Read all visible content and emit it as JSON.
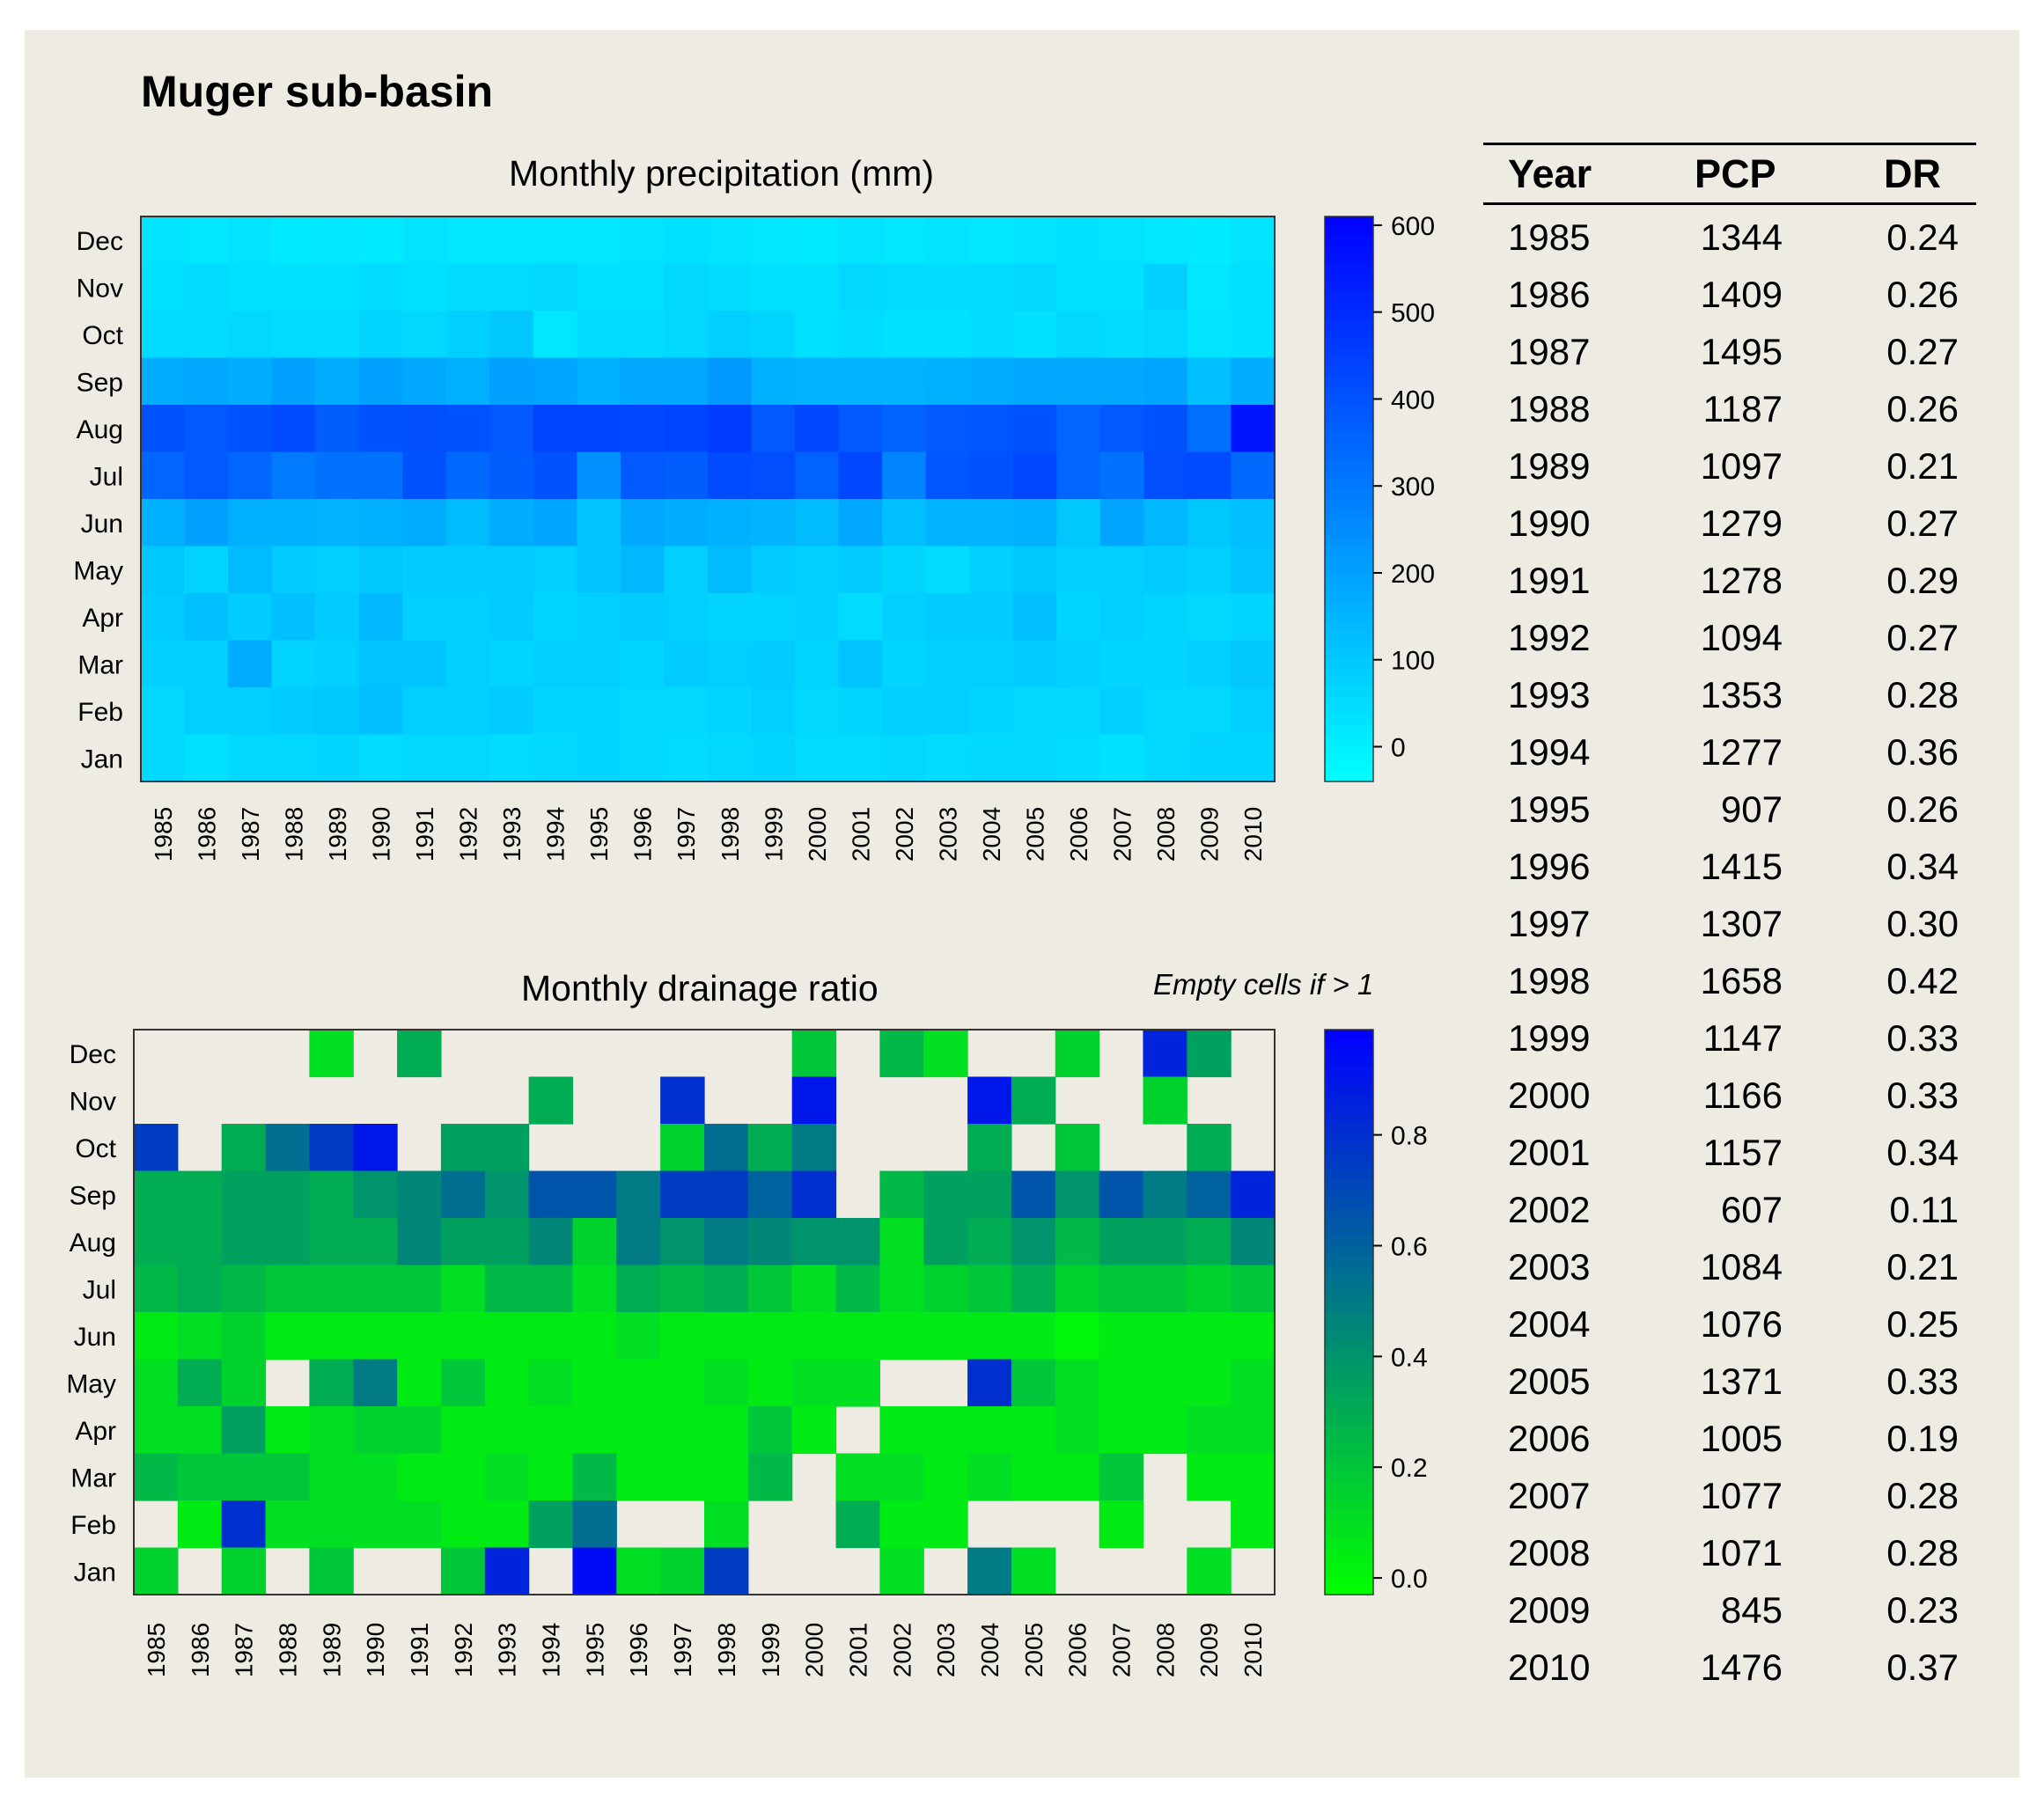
{
  "title": "Muger sub-basin",
  "note": "Empty cells if > 1",
  "colors": {
    "background": "#eeece2",
    "precip_low": "#00ffff",
    "precip_high": "#0000ff",
    "dr_low": "#00ff00",
    "dr_high": "#0000ff"
  },
  "chart_data": [
    {
      "type": "heatmap",
      "title": "Monthly precipitation (mm)",
      "xlabel": "",
      "ylabel": "",
      "x": [
        "1985",
        "1986",
        "1987",
        "1988",
        "1989",
        "1990",
        "1991",
        "1992",
        "1993",
        "1994",
        "1995",
        "1996",
        "1997",
        "1998",
        "1999",
        "2000",
        "2001",
        "2002",
        "2003",
        "2004",
        "2005",
        "2006",
        "2007",
        "2008",
        "2009",
        "2010"
      ],
      "y": [
        "Dec",
        "Nov",
        "Oct",
        "Sep",
        "Aug",
        "Jul",
        "Jun",
        "May",
        "Apr",
        "Mar",
        "Feb",
        "Jan"
      ],
      "colorbar": {
        "min": -40,
        "max": 610,
        "ticks": [
          0,
          100,
          200,
          300,
          400,
          500,
          600
        ],
        "low_color": "#00ffff",
        "high_color": "#0000ff"
      },
      "values": [
        [
          30,
          20,
          30,
          10,
          20,
          10,
          30,
          20,
          20,
          20,
          20,
          30,
          40,
          30,
          20,
          10,
          30,
          20,
          30,
          20,
          30,
          40,
          30,
          20,
          10,
          30
        ],
        [
          40,
          50,
          40,
          40,
          40,
          50,
          40,
          50,
          50,
          60,
          40,
          40,
          60,
          50,
          40,
          40,
          60,
          50,
          50,
          50,
          60,
          40,
          40,
          80,
          20,
          40
        ],
        [
          50,
          50,
          60,
          50,
          50,
          70,
          60,
          80,
          100,
          20,
          50,
          50,
          60,
          80,
          70,
          40,
          50,
          40,
          40,
          50,
          40,
          60,
          50,
          60,
          30,
          40
        ],
        [
          170,
          180,
          170,
          200,
          170,
          200,
          180,
          160,
          200,
          190,
          160,
          180,
          180,
          220,
          160,
          150,
          150,
          150,
          160,
          170,
          180,
          180,
          180,
          190,
          120,
          170
        ],
        [
          400,
          380,
          400,
          420,
          370,
          400,
          410,
          400,
          380,
          440,
          440,
          430,
          440,
          460,
          380,
          430,
          380,
          360,
          380,
          390,
          400,
          350,
          380,
          400,
          330,
          560
        ],
        [
          350,
          380,
          350,
          300,
          320,
          320,
          400,
          340,
          370,
          400,
          240,
          380,
          370,
          420,
          410,
          360,
          430,
          270,
          390,
          400,
          430,
          350,
          320,
          410,
          420,
          340
        ],
        [
          160,
          200,
          160,
          160,
          150,
          160,
          170,
          130,
          170,
          190,
          110,
          180,
          170,
          160,
          150,
          130,
          180,
          120,
          150,
          150,
          160,
          100,
          190,
          140,
          100,
          120
        ],
        [
          100,
          70,
          130,
          90,
          80,
          100,
          90,
          90,
          90,
          80,
          110,
          140,
          80,
          130,
          90,
          80,
          90,
          70,
          50,
          80,
          100,
          80,
          80,
          90,
          80,
          110
        ],
        [
          90,
          120,
          90,
          120,
          90,
          140,
          80,
          80,
          90,
          70,
          80,
          90,
          80,
          70,
          70,
          80,
          50,
          80,
          90,
          90,
          120,
          70,
          80,
          70,
          60,
          70
        ],
        [
          80,
          80,
          170,
          70,
          80,
          110,
          110,
          80,
          70,
          80,
          80,
          70,
          90,
          80,
          90,
          70,
          110,
          70,
          80,
          80,
          90,
          80,
          70,
          70,
          80,
          100
        ],
        [
          60,
          80,
          80,
          90,
          100,
          120,
          80,
          80,
          90,
          70,
          70,
          60,
          60,
          70,
          80,
          60,
          70,
          80,
          80,
          70,
          60,
          60,
          80,
          60,
          60,
          80
        ],
        [
          60,
          40,
          60,
          60,
          70,
          50,
          60,
          60,
          50,
          60,
          70,
          60,
          50,
          60,
          70,
          50,
          50,
          60,
          50,
          60,
          60,
          50,
          40,
          60,
          70,
          70
        ]
      ]
    },
    {
      "type": "heatmap",
      "title": "Monthly drainage ratio",
      "xlabel": "",
      "ylabel": "",
      "x": [
        "1985",
        "1986",
        "1987",
        "1988",
        "1989",
        "1990",
        "1991",
        "1992",
        "1993",
        "1994",
        "1995",
        "1996",
        "1997",
        "1998",
        "1999",
        "2000",
        "2001",
        "2002",
        "2003",
        "2004",
        "2005",
        "2006",
        "2007",
        "2008",
        "2009",
        "2010"
      ],
      "y": [
        "Dec",
        "Nov",
        "Oct",
        "Sep",
        "Aug",
        "Jul",
        "Jun",
        "May",
        "Apr",
        "Mar",
        "Feb",
        "Jan"
      ],
      "colorbar": {
        "min": -0.03,
        "max": 0.99,
        "ticks": [
          0.0,
          0.2,
          0.4,
          0.6,
          0.8
        ],
        "tick_labels": [
          "0.0",
          "0.2",
          "0.4",
          "0.6",
          "0.8"
        ],
        "low_color": "#00ff00",
        "high_color": "#0000ff"
      },
      "empty_rule": "Empty cells if > 1",
      "values": [
        [
          null,
          null,
          null,
          null,
          0.1,
          null,
          0.3,
          null,
          null,
          null,
          null,
          null,
          null,
          null,
          null,
          0.2,
          null,
          0.25,
          0.1,
          null,
          null,
          0.15,
          null,
          0.85,
          0.35,
          null
        ],
        [
          null,
          null,
          null,
          null,
          null,
          null,
          null,
          null,
          null,
          0.3,
          null,
          null,
          0.8,
          null,
          null,
          0.9,
          null,
          null,
          null,
          0.9,
          0.3,
          null,
          null,
          0.15,
          null,
          null
        ],
        [
          0.75,
          null,
          0.3,
          0.55,
          0.75,
          0.9,
          null,
          0.35,
          0.35,
          null,
          null,
          null,
          0.15,
          0.55,
          0.3,
          0.5,
          null,
          null,
          null,
          0.3,
          null,
          0.2,
          null,
          null,
          0.3,
          null
        ],
        [
          0.3,
          0.3,
          0.35,
          0.35,
          0.3,
          0.4,
          0.45,
          0.55,
          0.4,
          0.65,
          0.65,
          0.5,
          0.75,
          0.75,
          0.6,
          0.8,
          null,
          0.25,
          0.35,
          0.35,
          0.65,
          0.4,
          0.65,
          0.5,
          0.6,
          0.85
        ],
        [
          0.3,
          0.3,
          0.35,
          0.35,
          0.3,
          0.3,
          0.45,
          0.35,
          0.35,
          0.45,
          0.15,
          0.5,
          0.4,
          0.5,
          0.45,
          0.4,
          0.4,
          0.1,
          0.35,
          0.3,
          0.4,
          0.25,
          0.35,
          0.35,
          0.3,
          0.45
        ],
        [
          0.25,
          0.3,
          0.25,
          0.2,
          0.2,
          0.2,
          0.2,
          0.1,
          0.25,
          0.25,
          0.1,
          0.3,
          0.25,
          0.3,
          0.2,
          0.1,
          0.25,
          0.1,
          0.15,
          0.2,
          0.3,
          0.15,
          0.2,
          0.2,
          0.15,
          0.2
        ],
        [
          0.05,
          0.1,
          0.15,
          0.05,
          0.05,
          0.05,
          0.05,
          0.05,
          0.05,
          0.05,
          0.05,
          0.1,
          0.05,
          0.05,
          0.05,
          0.05,
          0.05,
          0.05,
          0.05,
          0.05,
          0.05,
          0.0,
          0.05,
          0.05,
          0.05,
          0.05
        ],
        [
          0.1,
          0.3,
          0.15,
          null,
          0.3,
          0.5,
          0.05,
          0.2,
          0.05,
          0.1,
          0.05,
          0.05,
          0.05,
          0.1,
          0.05,
          0.1,
          0.1,
          null,
          null,
          0.8,
          0.2,
          0.1,
          0.05,
          0.05,
          0.05,
          0.1
        ],
        [
          0.1,
          0.1,
          0.35,
          0.05,
          0.1,
          0.15,
          0.15,
          0.05,
          0.05,
          0.05,
          0.05,
          0.05,
          0.05,
          0.05,
          0.2,
          0.05,
          null,
          0.05,
          0.05,
          0.05,
          0.05,
          0.1,
          0.05,
          0.05,
          0.1,
          0.1
        ],
        [
          0.25,
          0.2,
          0.2,
          0.2,
          0.1,
          0.1,
          0.05,
          0.05,
          0.1,
          0.05,
          0.25,
          0.05,
          0.05,
          0.05,
          0.25,
          null,
          0.1,
          0.1,
          0.05,
          0.1,
          0.05,
          0.05,
          0.2,
          null,
          0.05,
          0.05
        ],
        [
          null,
          0.05,
          0.8,
          0.1,
          0.1,
          0.1,
          0.1,
          0.05,
          0.05,
          0.35,
          0.55,
          null,
          null,
          0.1,
          null,
          null,
          0.3,
          0.05,
          0.05,
          null,
          null,
          null,
          0.05,
          null,
          null,
          0.05
        ],
        [
          0.15,
          null,
          0.15,
          null,
          0.2,
          null,
          null,
          0.2,
          0.85,
          null,
          0.95,
          0.1,
          0.15,
          0.75,
          null,
          null,
          null,
          0.1,
          null,
          0.5,
          0.1,
          null,
          null,
          null,
          0.1,
          null
        ]
      ]
    }
  ],
  "table": {
    "headers": [
      "Year",
      "PCP",
      "DR"
    ],
    "rows": [
      [
        "1985",
        "1344",
        "0.24"
      ],
      [
        "1986",
        "1409",
        "0.26"
      ],
      [
        "1987",
        "1495",
        "0.27"
      ],
      [
        "1988",
        "1187",
        "0.26"
      ],
      [
        "1989",
        "1097",
        "0.21"
      ],
      [
        "1990",
        "1279",
        "0.27"
      ],
      [
        "1991",
        "1278",
        "0.29"
      ],
      [
        "1992",
        "1094",
        "0.27"
      ],
      [
        "1993",
        "1353",
        "0.28"
      ],
      [
        "1994",
        "1277",
        "0.36"
      ],
      [
        "1995",
        "907",
        "0.26"
      ],
      [
        "1996",
        "1415",
        "0.34"
      ],
      [
        "1997",
        "1307",
        "0.30"
      ],
      [
        "1998",
        "1658",
        "0.42"
      ],
      [
        "1999",
        "1147",
        "0.33"
      ],
      [
        "2000",
        "1166",
        "0.33"
      ],
      [
        "2001",
        "1157",
        "0.34"
      ],
      [
        "2002",
        "607",
        "0.11"
      ],
      [
        "2003",
        "1084",
        "0.21"
      ],
      [
        "2004",
        "1076",
        "0.25"
      ],
      [
        "2005",
        "1371",
        "0.33"
      ],
      [
        "2006",
        "1005",
        "0.19"
      ],
      [
        "2007",
        "1077",
        "0.28"
      ],
      [
        "2008",
        "1071",
        "0.28"
      ],
      [
        "2009",
        "845",
        "0.23"
      ],
      [
        "2010",
        "1476",
        "0.37"
      ]
    ]
  }
}
